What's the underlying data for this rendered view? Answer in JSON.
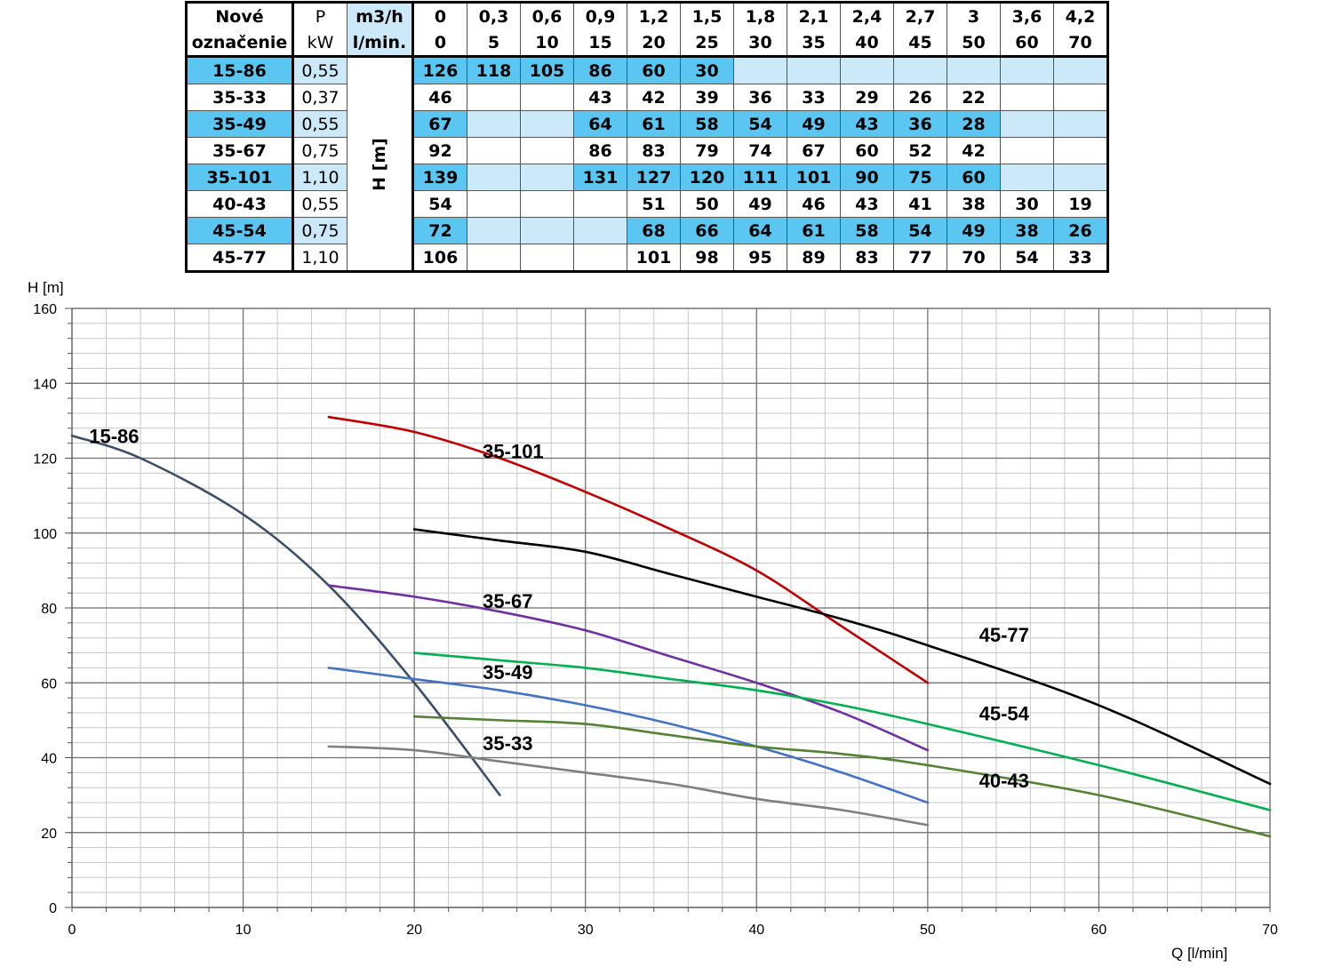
{
  "table": {
    "header_col1": [
      "Nové",
      "označenie"
    ],
    "header_col2": [
      "P",
      "kW"
    ],
    "header_col3": [
      "m3/h",
      "l/min."
    ],
    "m3h": [
      "0",
      "0,3",
      "0,6",
      "0,9",
      "1,2",
      "1,5",
      "1,8",
      "2,1",
      "2,4",
      "2,7",
      "3",
      "3,6",
      "4,2"
    ],
    "lmin": [
      "0",
      "5",
      "10",
      "15",
      "20",
      "25",
      "30",
      "35",
      "40",
      "45",
      "50",
      "60",
      "70"
    ],
    "h_label": "H [m]",
    "rows": [
      {
        "model": "15-86",
        "power": "0,55",
        "values": [
          "126",
          "118",
          "105",
          "86",
          "60",
          "30",
          "",
          "",
          "",
          "",
          "",
          "",
          ""
        ]
      },
      {
        "model": "35-33",
        "power": "0,37",
        "values": [
          "46",
          "",
          "",
          "43",
          "42",
          "39",
          "36",
          "33",
          "29",
          "26",
          "22",
          "",
          ""
        ]
      },
      {
        "model": "35-49",
        "power": "0,55",
        "values": [
          "67",
          "",
          "",
          "64",
          "61",
          "58",
          "54",
          "49",
          "43",
          "36",
          "28",
          "",
          ""
        ]
      },
      {
        "model": "35-67",
        "power": "0,75",
        "values": [
          "92",
          "",
          "",
          "86",
          "83",
          "79",
          "74",
          "67",
          "60",
          "52",
          "42",
          "",
          ""
        ]
      },
      {
        "model": "35-101",
        "power": "1,10",
        "values": [
          "139",
          "",
          "",
          "131",
          "127",
          "120",
          "111",
          "101",
          "90",
          "75",
          "60",
          "",
          ""
        ]
      },
      {
        "model": "40-43",
        "power": "0,55",
        "values": [
          "54",
          "",
          "",
          "",
          "51",
          "50",
          "49",
          "46",
          "43",
          "41",
          "38",
          "30",
          "19"
        ]
      },
      {
        "model": "45-54",
        "power": "0,75",
        "values": [
          "72",
          "",
          "",
          "",
          "68",
          "66",
          "64",
          "61",
          "58",
          "54",
          "49",
          "38",
          "26"
        ]
      },
      {
        "model": "45-77",
        "power": "1,10",
        "values": [
          "106",
          "",
          "",
          "",
          "101",
          "98",
          "95",
          "89",
          "83",
          "77",
          "70",
          "54",
          "33"
        ]
      }
    ],
    "colors": {
      "light_blue": "#cce9f9",
      "dark_blue": "#5ac6f1"
    }
  },
  "chart_data": {
    "type": "line",
    "title": "",
    "xlabel": "Q [l/min]",
    "ylabel": "H [m]",
    "xlim": [
      0,
      70
    ],
    "ylim": [
      0,
      160
    ],
    "x_ticks": [
      0,
      10,
      20,
      30,
      40,
      50,
      60,
      70
    ],
    "y_ticks": [
      0,
      20,
      40,
      60,
      80,
      100,
      120,
      140,
      160
    ],
    "grid": true,
    "series": [
      {
        "name": "15-86",
        "color": "#3b5068",
        "x": [
          0,
          4,
          10,
          15,
          20,
          25
        ],
        "y": [
          126,
          120,
          105,
          86,
          60,
          30
        ]
      },
      {
        "name": "35-101",
        "color": "#c00000",
        "x": [
          15,
          20,
          25,
          30,
          35,
          40,
          45,
          50
        ],
        "y": [
          131,
          127,
          120,
          111,
          101,
          90,
          75,
          60
        ]
      },
      {
        "name": "35-67",
        "color": "#7030a0",
        "x": [
          15,
          20,
          25,
          30,
          35,
          40,
          45,
          50
        ],
        "y": [
          86,
          83,
          79,
          74,
          67,
          60,
          52,
          42
        ]
      },
      {
        "name": "35-49",
        "color": "#4472c4",
        "x": [
          15,
          20,
          25,
          30,
          35,
          40,
          45,
          50
        ],
        "y": [
          64,
          61,
          58,
          54,
          49,
          43,
          36,
          28
        ]
      },
      {
        "name": "35-33",
        "color": "#7f7f7f",
        "x": [
          15,
          20,
          25,
          30,
          35,
          40,
          45,
          50
        ],
        "y": [
          43,
          42,
          39,
          36,
          33,
          29,
          26,
          22
        ]
      },
      {
        "name": "45-77",
        "color": "#000000",
        "x": [
          20,
          25,
          30,
          35,
          40,
          45,
          50,
          60,
          70
        ],
        "y": [
          101,
          98,
          95,
          89,
          83,
          77,
          70,
          54,
          33
        ]
      },
      {
        "name": "45-54",
        "color": "#00b050",
        "x": [
          20,
          25,
          30,
          35,
          40,
          45,
          50,
          60,
          70
        ],
        "y": [
          68,
          66,
          64,
          61,
          58,
          54,
          49,
          38,
          26
        ]
      },
      {
        "name": "40-43",
        "color": "#548235",
        "x": [
          20,
          25,
          30,
          35,
          40,
          45,
          50,
          60,
          70
        ],
        "y": [
          51,
          50,
          49,
          46,
          43,
          41,
          38,
          30,
          19
        ]
      }
    ]
  }
}
